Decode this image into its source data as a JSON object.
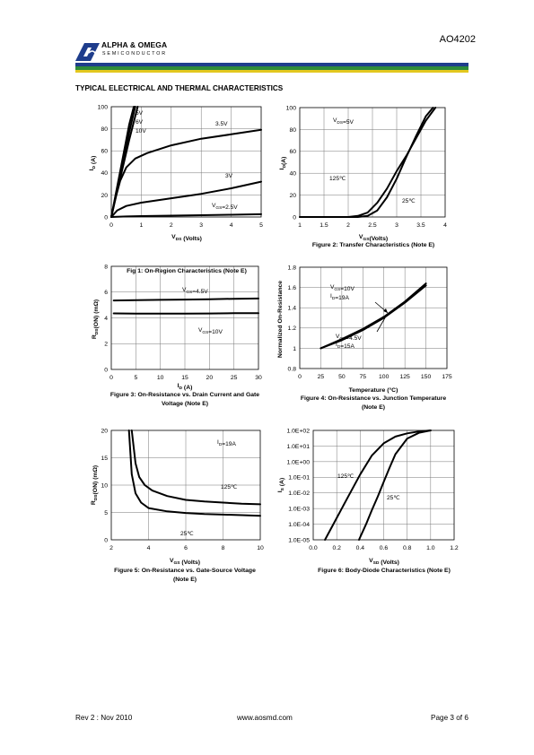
{
  "header": {
    "company_line1": "ALPHA & OMEGA",
    "company_line2": "SEMICONDUCTOR",
    "part_number": "AO4202",
    "colors": {
      "blue": "#1f3d8c",
      "green": "#2e8b3a",
      "yellow": "#e3c81e"
    }
  },
  "section_title": "TYPICAL ELECTRICAL AND THERMAL CHARACTERISTICS",
  "footer": {
    "revision": "Rev 2 : Nov 2010",
    "website": "www.aosmd.com",
    "page": "Page 3 of 6"
  },
  "chart_data": [
    {
      "id": "fig1",
      "type": "line",
      "caption": "Fig 1: On-Region Characteristics (Note E)",
      "xlabel": "V_DS (Volts)",
      "ylabel": "I_D (A)",
      "xlim": [
        0,
        5
      ],
      "ylim": [
        0,
        100
      ],
      "xticks": [
        0,
        1,
        2,
        3,
        4,
        5
      ],
      "yticks": [
        0,
        20,
        40,
        60,
        80,
        100
      ],
      "grid": true,
      "series": [
        {
          "name": "10V",
          "x": [
            0,
            0.2,
            0.4,
            0.6,
            0.75
          ],
          "y": [
            0,
            28,
            56,
            84,
            100
          ]
        },
        {
          "name": "6V",
          "x": [
            0,
            0.2,
            0.4,
            0.6,
            0.8
          ],
          "y": [
            0,
            26,
            52,
            77,
            100
          ]
        },
        {
          "name": "5V",
          "x": [
            0,
            0.2,
            0.4,
            0.6,
            0.88
          ],
          "y": [
            0,
            24,
            47,
            70,
            100
          ]
        },
        {
          "name": "3.5V",
          "x": [
            0,
            0.15,
            0.3,
            0.5,
            0.8,
            1.2,
            2,
            3,
            4,
            5
          ],
          "y": [
            0,
            18,
            33,
            45,
            53,
            58,
            65,
            71,
            75,
            79
          ]
        },
        {
          "name": "3V",
          "x": [
            0,
            0.2,
            0.5,
            1,
            2,
            3,
            4,
            5
          ],
          "y": [
            0,
            6,
            10,
            13,
            17,
            21,
            26,
            32
          ]
        },
        {
          "name": "V_GS=2.5V",
          "x": [
            0,
            0.5,
            1,
            2,
            3,
            4,
            5
          ],
          "y": [
            0,
            0.5,
            0.8,
            1.2,
            1.6,
            2,
            2.5
          ]
        }
      ],
      "annotations": [
        "5V",
        "6V",
        "10V",
        "3.5V",
        "3V",
        "V_GS=2.5V"
      ]
    },
    {
      "id": "fig2",
      "type": "line",
      "caption": "Figure 2: Transfer Characteristics (Note E)",
      "xlabel": "V_GS(Volts)",
      "ylabel": "I_D(A)",
      "xlim": [
        1,
        4
      ],
      "ylim": [
        0,
        100
      ],
      "xticks": [
        1,
        1.5,
        2,
        2.5,
        3,
        3.5,
        4
      ],
      "yticks": [
        0,
        20,
        40,
        60,
        80,
        100
      ],
      "grid": true,
      "series": [
        {
          "name": "125℃",
          "x": [
            1,
            2,
            2.2,
            2.4,
            2.6,
            2.8,
            3.0,
            3.2,
            3.4,
            3.6,
            3.8
          ],
          "y": [
            0,
            0,
            1,
            4,
            13,
            26,
            42,
            56,
            72,
            88,
            100
          ]
        },
        {
          "name": "25℃",
          "x": [
            1,
            2.2,
            2.4,
            2.6,
            2.8,
            3.0,
            3.2,
            3.4,
            3.6,
            3.75
          ],
          "y": [
            0,
            0,
            1,
            6,
            18,
            35,
            55,
            74,
            92,
            100
          ]
        }
      ],
      "annotations": [
        "V_DS=5V",
        "125℃",
        "25℃"
      ]
    },
    {
      "id": "fig3",
      "type": "line",
      "caption": "Figure 3: On-Resistance vs. Drain Current and Gate Voltage (Note E)",
      "xlabel": "I_D (A)",
      "ylabel": "R_DS(ON) (mΩ)",
      "xlim": [
        0,
        30
      ],
      "ylim": [
        0,
        8
      ],
      "xticks": [
        0,
        5,
        10,
        15,
        20,
        25,
        30
      ],
      "yticks": [
        0,
        2,
        4,
        6,
        8
      ],
      "grid": true,
      "series": [
        {
          "name": "V_GS=4.5V",
          "x": [
            0.5,
            5,
            10,
            15,
            20,
            25,
            30
          ],
          "y": [
            5.35,
            5.38,
            5.4,
            5.42,
            5.45,
            5.48,
            5.5
          ]
        },
        {
          "name": "V_GS=10V",
          "x": [
            0.5,
            5,
            10,
            15,
            20,
            25,
            30
          ],
          "y": [
            4.35,
            4.33,
            4.33,
            4.33,
            4.34,
            4.36,
            4.36
          ]
        }
      ],
      "annotations": [
        "V_GS=4.5V",
        "V_GS=10V"
      ]
    },
    {
      "id": "fig4",
      "type": "line",
      "caption": "Figure 4: On-Resistance vs. Junction Temperature (Note E)",
      "xlabel": "Temperature (°C)",
      "ylabel": "Normalized On-Resistance",
      "xlim": [
        0,
        175
      ],
      "ylim": [
        0.8,
        1.8
      ],
      "xticks": [
        0,
        25,
        50,
        75,
        100,
        125,
        150,
        175
      ],
      "yticks": [
        0.8,
        1,
        1.2,
        1.4,
        1.6,
        1.8
      ],
      "grid": true,
      "series": [
        {
          "name": "V_GS=10V, I_D=19A",
          "x": [
            25,
            50,
            75,
            100,
            125,
            150
          ],
          "y": [
            1.0,
            1.08,
            1.18,
            1.3,
            1.45,
            1.62
          ]
        },
        {
          "name": "V_GS=4.5V, I_D=15A",
          "x": [
            25,
            50,
            75,
            100,
            125,
            150
          ],
          "y": [
            1.0,
            1.09,
            1.19,
            1.31,
            1.46,
            1.64
          ]
        }
      ],
      "annotations": [
        "V_GS=10V",
        "I_D=19A",
        "V_GS=4.5V",
        "I_D=15A"
      ]
    },
    {
      "id": "fig5",
      "type": "line",
      "caption": "Figure 5: On-Resistance vs. Gate-Source Voltage (Note E)",
      "xlabel": "V_GS (Volts)",
      "ylabel": "R_DS(ON) (mΩ)",
      "xlim": [
        2,
        10
      ],
      "ylim": [
        0,
        20
      ],
      "xticks": [
        2,
        4,
        6,
        8,
        10
      ],
      "yticks": [
        0,
        5,
        10,
        15,
        20
      ],
      "grid": true,
      "series": [
        {
          "name": "125℃",
          "x": [
            3.1,
            3.3,
            3.5,
            3.8,
            4.2,
            5,
            6,
            7,
            8,
            9,
            10
          ],
          "y": [
            20,
            14,
            11.5,
            10,
            9,
            8,
            7.3,
            7,
            6.8,
            6.6,
            6.5
          ]
        },
        {
          "name": "25℃",
          "x": [
            2.95,
            3.1,
            3.3,
            3.6,
            4,
            5,
            6,
            7,
            8,
            9,
            10
          ],
          "y": [
            20,
            12,
            8.5,
            6.8,
            5.8,
            5.2,
            4.9,
            4.7,
            4.6,
            4.5,
            4.4
          ]
        }
      ],
      "annotations": [
        "I_D=19A",
        "125℃",
        "25℃"
      ]
    },
    {
      "id": "fig6",
      "type": "line",
      "caption": "Figure 6: Body-Diode Characteristics (Note E)",
      "xlabel": "V_SD (Volts)",
      "ylabel": "I_S (A)",
      "xlim": [
        0,
        1.2
      ],
      "ylim": [
        1e-05,
        100
      ],
      "yscale": "log",
      "xticks": [
        "0.0",
        "0.2",
        "0.4",
        "0.6",
        "0.8",
        "1.0",
        "1.2"
      ],
      "yticks": [
        "1.0E+02",
        "1.0E+01",
        "1.0E+00",
        "1.0E-01",
        "1.0E-02",
        "1.0E-03",
        "1.0E-04",
        "1.0E-05"
      ],
      "grid": true,
      "series": [
        {
          "name": "125℃",
          "x": [
            0.1,
            0.2,
            0.3,
            0.4,
            0.5,
            0.6,
            0.7,
            0.8,
            0.9,
            1.0
          ],
          "y": [
            1e-05,
            0.00025,
            0.0063,
            0.15,
            2.5,
            15,
            40,
            65,
            85,
            100
          ]
        },
        {
          "name": "25℃",
          "x": [
            0.39,
            0.45,
            0.5,
            0.55,
            0.6,
            0.65,
            0.7,
            0.8,
            0.9,
            1.0
          ],
          "y": [
            1e-05,
            0.0001,
            0.0008,
            0.006,
            0.05,
            0.4,
            3,
            30,
            70,
            100
          ]
        }
      ],
      "annotations": [
        "125℃",
        "25℃"
      ]
    }
  ]
}
